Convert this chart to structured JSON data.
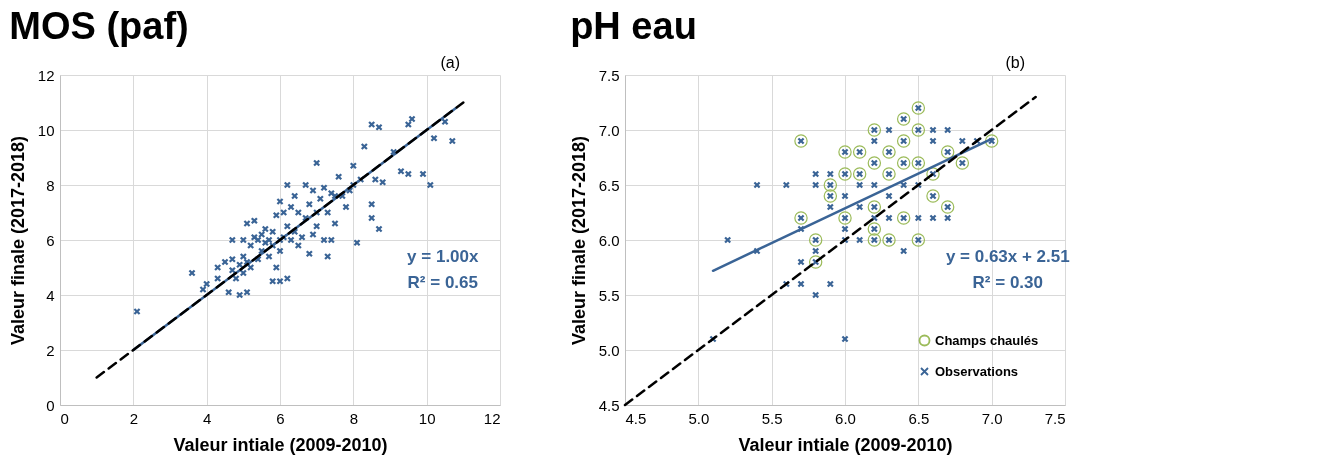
{
  "chart_data": [
    {
      "type": "scatter",
      "title": "MOS (paf)",
      "xlabel": "Valeur intiale (2009-2010)",
      "ylabel": "Valeur finale (2017-2018)",
      "xlim": [
        0,
        12
      ],
      "ylim": [
        0,
        12
      ],
      "xticks": [
        0,
        2,
        4,
        6,
        8,
        10,
        12
      ],
      "yticks": [
        0,
        2,
        4,
        6,
        8,
        10,
        12
      ],
      "grid": true,
      "annotations": [
        "(a)",
        "y = 1.00x",
        "R² = 0.65"
      ],
      "series": [
        {
          "color": "#3a6496",
          "marker": "cross",
          "x": [
            2.1,
            3.6,
            3.9,
            4.0,
            4.3,
            4.3,
            4.5,
            4.6,
            4.7,
            4.7,
            4.7,
            4.8,
            4.9,
            4.9,
            5.0,
            5.0,
            5.0,
            5.1,
            5.1,
            5.1,
            5.2,
            5.2,
            5.3,
            5.3,
            5.4,
            5.4,
            5.5,
            5.5,
            5.6,
            5.6,
            5.7,
            5.7,
            5.8,
            5.8,
            5.8,
            5.9,
            5.9,
            6.0,
            6.0,
            6.0,
            6.0,
            6.1,
            6.1,
            6.2,
            6.2,
            6.2,
            6.3,
            6.3,
            6.4,
            6.4,
            6.5,
            6.5,
            6.6,
            6.7,
            6.7,
            6.8,
            6.8,
            6.9,
            6.9,
            7.0,
            7.0,
            7.0,
            7.1,
            7.2,
            7.2,
            7.3,
            7.3,
            7.4,
            7.4,
            7.5,
            7.5,
            7.6,
            7.7,
            7.8,
            7.9,
            8.0,
            8.0,
            8.1,
            8.2,
            8.3,
            8.5,
            8.5,
            8.5,
            8.6,
            8.7,
            8.7,
            8.8,
            9.1,
            9.3,
            9.5,
            9.5,
            9.6,
            9.9,
            10.1,
            10.2,
            10.5,
            10.7
          ],
          "values": [
            3.4,
            4.8,
            4.2,
            4.4,
            4.6,
            5.0,
            5.2,
            4.1,
            4.9,
            5.3,
            6.0,
            4.6,
            4.0,
            5.1,
            4.8,
            5.4,
            6.0,
            4.1,
            5.2,
            6.6,
            5.0,
            5.8,
            6.1,
            6.7,
            5.3,
            6.0,
            5.6,
            6.2,
            5.9,
            6.4,
            5.4,
            6.0,
            4.5,
            5.8,
            6.3,
            5.0,
            6.9,
            4.5,
            5.6,
            6.0,
            7.4,
            6.1,
            7.0,
            4.6,
            6.5,
            8.0,
            6.0,
            7.2,
            6.3,
            7.6,
            5.8,
            7.0,
            6.1,
            6.8,
            8.0,
            5.5,
            7.3,
            6.2,
            7.8,
            6.5,
            7.0,
            8.8,
            7.5,
            6.0,
            7.9,
            5.4,
            7.0,
            6.0,
            7.7,
            6.6,
            7.6,
            8.3,
            7.6,
            7.2,
            7.8,
            8.7,
            8.0,
            5.9,
            8.2,
            9.4,
            6.8,
            7.3,
            10.2,
            8.2,
            6.4,
            10.1,
            8.1,
            9.2,
            8.5,
            8.4,
            10.2,
            10.4,
            8.4,
            8.0,
            9.7,
            10.3,
            9.6
          ]
        },
        {
          "type": "line",
          "color": "#3a6496",
          "line_style": "solid",
          "x": [
            2,
            10.8
          ],
          "values": [
            2,
            10.8
          ]
        },
        {
          "type": "line",
          "color": "#000000",
          "line_style": "dashed",
          "x": [
            1,
            11
          ],
          "values": [
            1,
            11
          ]
        }
      ]
    },
    {
      "type": "scatter",
      "title": "pH eau",
      "xlabel": "Valeur intiale (2009-2010)",
      "ylabel": "Valeur finale (2017-2018)",
      "xlim": [
        4.5,
        7.5
      ],
      "ylim": [
        4.5,
        7.5
      ],
      "xticks": [
        4.5,
        {
          "value": 5,
          "label": "5.0"
        },
        5.5,
        {
          "value": 6,
          "label": "6.0"
        },
        6.5,
        {
          "value": 7,
          "label": "7.0"
        },
        7.5
      ],
      "yticks": [
        4.5,
        {
          "value": 5,
          "label": "5.0"
        },
        5.5,
        {
          "value": 6,
          "label": "6.0"
        },
        6.5,
        {
          "value": 7,
          "label": "7.0"
        },
        7.5
      ],
      "grid": true,
      "legend": "bottom right",
      "annotations": [
        "(b)",
        "y = 0.63x + 2.51",
        "R² = 0.30"
      ],
      "series": [
        {
          "name": "Champs chaulés",
          "color": "#9bbb59",
          "marker": "circle",
          "x": [
            5.7,
            5.7,
            5.8,
            5.8,
            5.9,
            5.9,
            6.0,
            6.0,
            6.0,
            6.1,
            6.1,
            6.2,
            6.2,
            6.2,
            6.2,
            6.2,
            6.3,
            6.3,
            6.3,
            6.4,
            6.4,
            6.4,
            6.4,
            6.5,
            6.5,
            6.5,
            6.5,
            6.6,
            6.6,
            6.7,
            6.7,
            6.8,
            7.0
          ],
          "values": [
            6.9,
            6.2,
            6.0,
            5.8,
            6.5,
            6.4,
            6.8,
            6.6,
            6.2,
            6.8,
            6.6,
            7.0,
            6.7,
            6.3,
            6.1,
            6.0,
            6.8,
            6.6,
            6.0,
            7.1,
            6.9,
            6.7,
            6.2,
            7.2,
            7.0,
            6.7,
            6.0,
            6.6,
            6.4,
            6.8,
            6.3,
            6.7,
            6.9
          ]
        },
        {
          "name": "Observations",
          "color": "#3a6496",
          "marker": "cross",
          "x": [
            5.1,
            5.2,
            5.4,
            5.4,
            5.6,
            5.6,
            5.7,
            5.7,
            5.7,
            5.7,
            5.7,
            5.8,
            5.8,
            5.8,
            5.8,
            5.8,
            5.8,
            5.9,
            5.9,
            5.9,
            5.9,
            5.9,
            6.0,
            6.0,
            6.0,
            6.0,
            6.0,
            6.0,
            6.0,
            6.1,
            6.1,
            6.1,
            6.1,
            6.1,
            6.2,
            6.2,
            6.2,
            6.2,
            6.2,
            6.2,
            6.2,
            6.2,
            6.3,
            6.3,
            6.3,
            6.3,
            6.3,
            6.3,
            6.4,
            6.4,
            6.4,
            6.4,
            6.4,
            6.4,
            6.5,
            6.5,
            6.5,
            6.5,
            6.5,
            6.5,
            6.6,
            6.6,
            6.6,
            6.6,
            6.6,
            6.7,
            6.7,
            6.7,
            6.7,
            6.8,
            6.8,
            6.9,
            7.0
          ],
          "values": [
            5.1,
            6.0,
            6.5,
            5.9,
            6.5,
            5.6,
            6.9,
            6.2,
            6.1,
            5.8,
            5.6,
            6.6,
            6.5,
            6.0,
            5.9,
            5.8,
            5.5,
            6.6,
            6.5,
            6.4,
            6.3,
            5.6,
            6.8,
            6.6,
            6.4,
            6.2,
            6.1,
            6.0,
            5.1,
            6.8,
            6.6,
            6.5,
            6.3,
            6.0,
            7.0,
            6.9,
            6.7,
            6.5,
            6.3,
            6.2,
            6.1,
            6.0,
            7.0,
            6.8,
            6.6,
            6.4,
            6.2,
            6.0,
            7.1,
            6.9,
            6.7,
            6.5,
            6.2,
            5.9,
            7.2,
            7.0,
            6.7,
            6.5,
            6.2,
            6.0,
            7.0,
            6.9,
            6.6,
            6.4,
            6.2,
            7.0,
            6.8,
            6.3,
            6.2,
            6.9,
            6.7,
            6.9,
            6.9
          ]
        },
        {
          "type": "line",
          "color": "#3a6496",
          "line_style": "solid",
          "x": [
            5.1,
            7.0
          ],
          "values": [
            5.72,
            6.92
          ]
        },
        {
          "type": "line",
          "color": "#000000",
          "line_style": "dashed",
          "x": [
            4.5,
            7.3
          ],
          "values": [
            4.5,
            7.3
          ]
        }
      ]
    }
  ]
}
